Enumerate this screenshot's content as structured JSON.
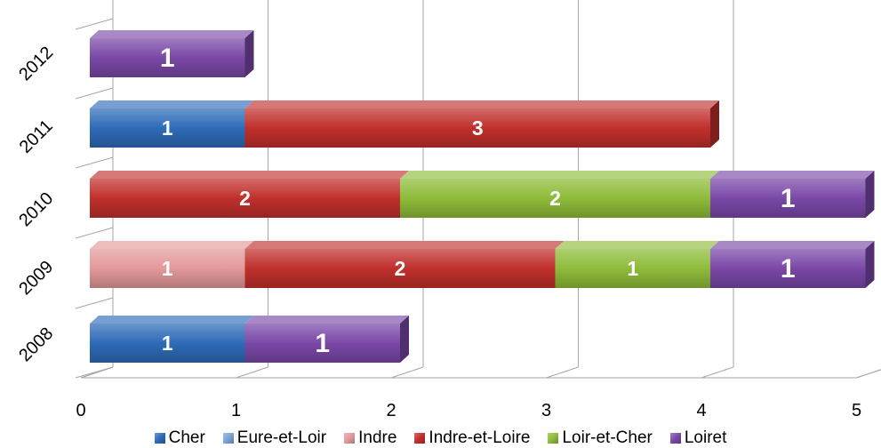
{
  "chart_data": {
    "type": "bar",
    "orientation": "horizontal",
    "stacked": true,
    "three_d": true,
    "categories": [
      "2008",
      "2009",
      "2010",
      "2011",
      "2012"
    ],
    "series": [
      {
        "name": "Cher",
        "color": "#2e6bb8",
        "values": [
          1,
          0,
          0,
          1,
          0
        ]
      },
      {
        "name": "Eure-et-Loir",
        "color": "#7aa3d6",
        "values": [
          0,
          0,
          0,
          0,
          0
        ]
      },
      {
        "name": "Indre",
        "color": "#e3999b",
        "values": [
          0,
          1,
          0,
          0,
          0
        ]
      },
      {
        "name": "Indre-et-Loire",
        "color": "#c0302c",
        "values": [
          0,
          2,
          2,
          3,
          0
        ]
      },
      {
        "name": "Loir-et-Cher",
        "color": "#8fbc3a",
        "values": [
          0,
          1,
          2,
          0,
          0
        ]
      },
      {
        "name": "Loiret",
        "color": "#7a48a8",
        "values": [
          1,
          1,
          1,
          0,
          1
        ]
      }
    ],
    "x_ticks": [
      "0",
      "1",
      "2",
      "3",
      "4",
      "5"
    ],
    "xlim": [
      0,
      5
    ],
    "grid": true,
    "legend_position": "bottom"
  }
}
